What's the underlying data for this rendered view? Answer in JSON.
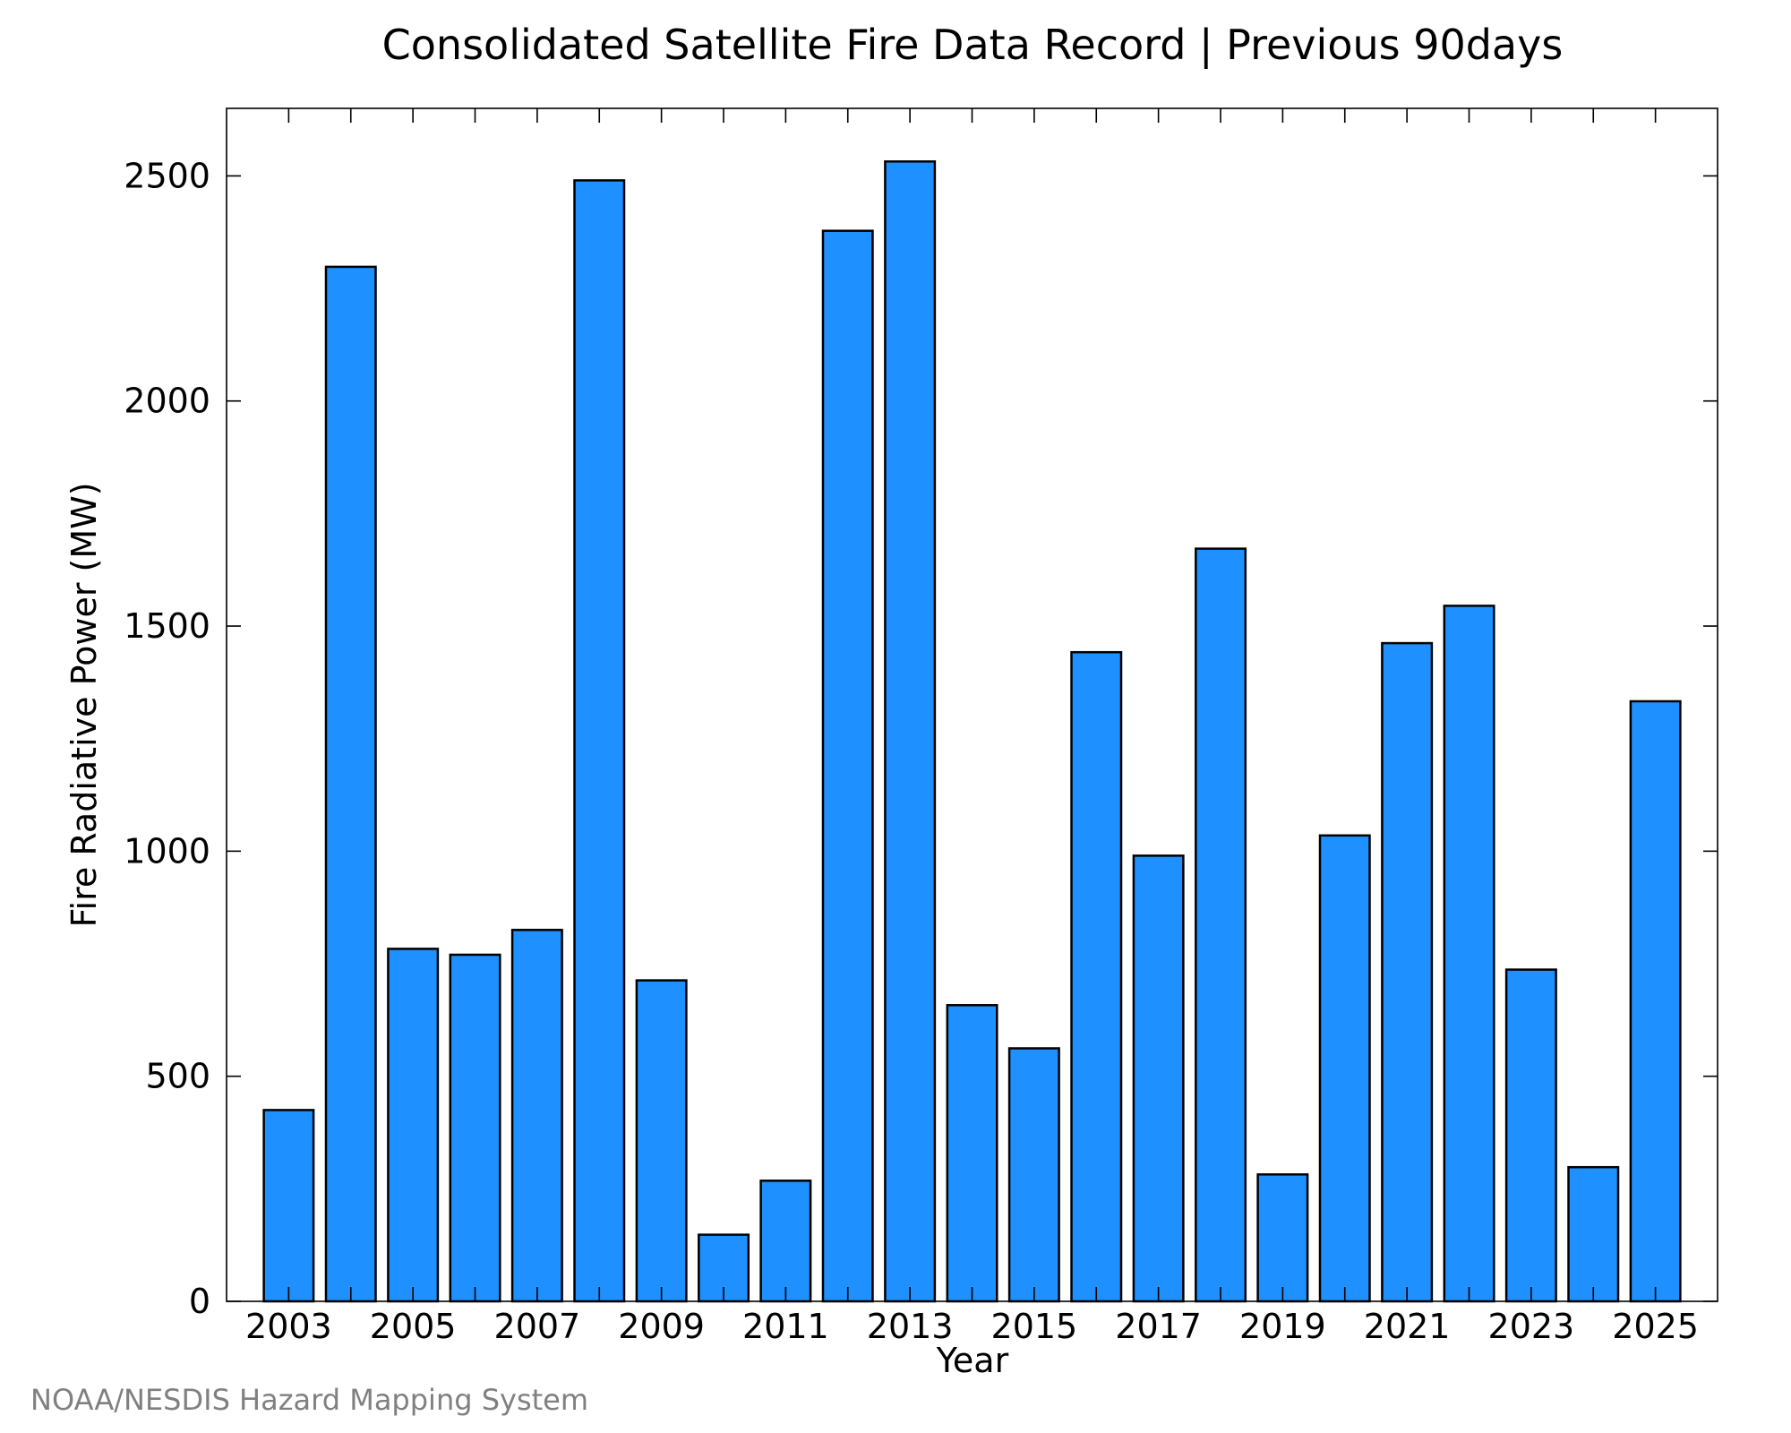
{
  "chart_data": {
    "type": "bar",
    "title": "Consolidated Satellite Fire Data Record | Previous 90days",
    "xlabel": "Year",
    "ylabel": "Fire Radiative Power (MW)",
    "x": [
      2003,
      2004,
      2005,
      2006,
      2007,
      2008,
      2009,
      2010,
      2011,
      2012,
      2013,
      2014,
      2015,
      2016,
      2017,
      2018,
      2019,
      2020,
      2021,
      2022,
      2023,
      2024,
      2025
    ],
    "values": [
      425,
      2298,
      783,
      770,
      825,
      2490,
      713,
      148,
      268,
      2378,
      2532,
      658,
      562,
      1442,
      990,
      1672,
      282,
      1035,
      1462,
      1545,
      737,
      298,
      1333
    ],
    "xlim": [
      2002,
      2026
    ],
    "ylim": [
      0,
      2650
    ],
    "xticks": [
      2003,
      2005,
      2007,
      2009,
      2011,
      2013,
      2015,
      2017,
      2019,
      2021,
      2023,
      2025
    ],
    "yticks": [
      0,
      500,
      1000,
      1500,
      2000,
      2500
    ],
    "grid": false,
    "legend": "none",
    "bar_color": "#1e90ff",
    "edge_color": "#000000"
  },
  "credit": "NOAA/NESDIS Hazard Mapping System"
}
